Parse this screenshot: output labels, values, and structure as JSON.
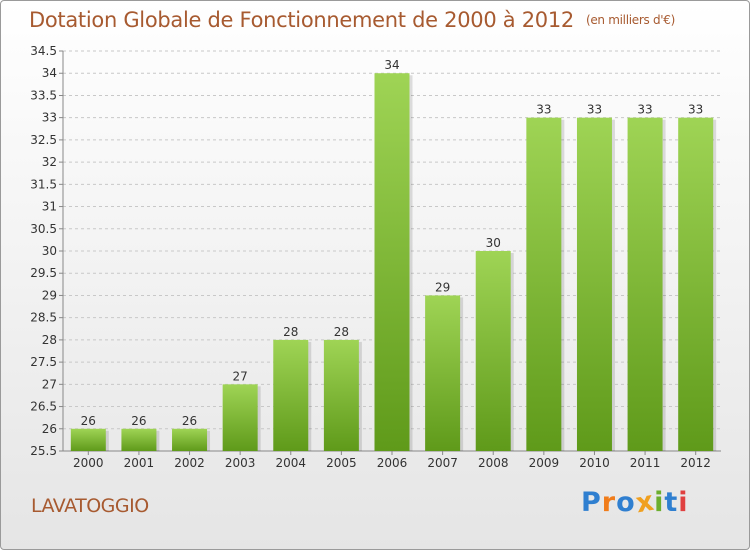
{
  "title": "Dotation Globale de Fonctionnement de 2000 à 2012",
  "subtitle": "(en milliers d'€)",
  "place": "LAVATOGGIO",
  "logo": {
    "text": "Proxiti",
    "letter_colors": [
      "#2f7fd0",
      "#f07c1a",
      "#2f7fd0",
      "#f0a020",
      "#6cae2e",
      "#2f7fd0",
      "#e04040"
    ]
  },
  "chart_data": {
    "type": "bar",
    "categories": [
      "2000",
      "2001",
      "2002",
      "2003",
      "2004",
      "2005",
      "2006",
      "2007",
      "2008",
      "2009",
      "2010",
      "2011",
      "2012"
    ],
    "values": [
      26,
      26,
      26,
      27,
      28,
      28,
      34,
      29,
      30,
      33,
      33,
      33,
      33
    ],
    "value_labels": [
      "26",
      "26",
      "26",
      "27",
      "28",
      "28",
      "34",
      "29",
      "30",
      "33",
      "33",
      "33",
      "33"
    ],
    "y_ticks": [
      "25.5",
      "26",
      "26.5",
      "27",
      "27.5",
      "28",
      "28.5",
      "29",
      "29.5",
      "30",
      "30.5",
      "31",
      "31.5",
      "32",
      "32.5",
      "33",
      "33.5",
      "34",
      "34.5"
    ],
    "ylim": [
      25.5,
      34.5
    ],
    "grid": true,
    "bar_color_top": "#9fd455",
    "bar_color_bottom": "#5f9a1a"
  }
}
